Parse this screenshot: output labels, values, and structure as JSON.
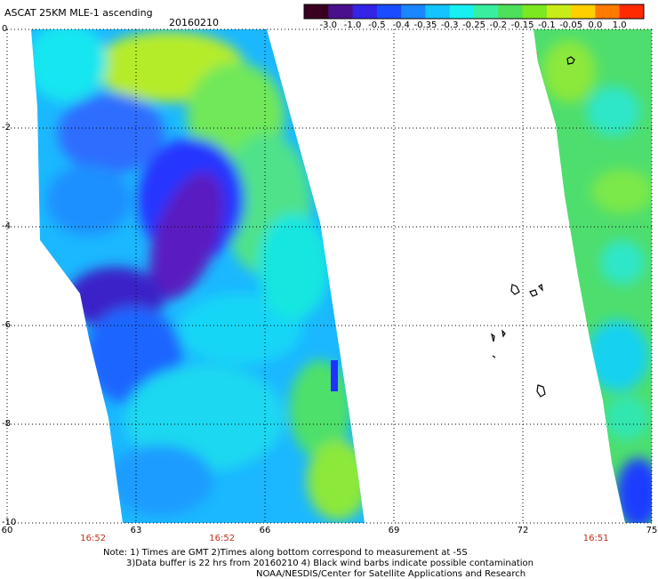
{
  "header": {
    "product_title": "ASCAT 25KM MLE-1 ascending",
    "date": "20160210"
  },
  "colorbar": {
    "labels": [
      "-3.0",
      "-1.0",
      "-0.5",
      "-0.4",
      "-0.35",
      "-0.3",
      "-0.25",
      "-0.2",
      "-0.15",
      "-0.1",
      "-0.05",
      "0.0",
      "1.0"
    ],
    "colors": [
      "#3a0020",
      "#4a0f8c",
      "#3324e6",
      "#1a4cff",
      "#1a86ff",
      "#13c4ff",
      "#16f0f0",
      "#36f0a0",
      "#4de05a",
      "#7ce820",
      "#c8ec18",
      "#ffd000",
      "#ff7a00",
      "#ff2a00"
    ]
  },
  "map": {
    "lon_ticks": [
      {
        "value": 60,
        "label": "60"
      },
      {
        "value": 63,
        "label": "63"
      },
      {
        "value": 66,
        "label": "66"
      },
      {
        "value": 69,
        "label": "69"
      },
      {
        "value": 72,
        "label": "72"
      },
      {
        "value": 75,
        "label": "75"
      }
    ],
    "lat_ticks": [
      {
        "value": 0,
        "label": "0"
      },
      {
        "value": -2,
        "label": "-2"
      },
      {
        "value": -4,
        "label": "-4"
      },
      {
        "value": -6,
        "label": "-6"
      },
      {
        "value": -8,
        "label": "-8"
      },
      {
        "value": -10,
        "label": "-10"
      }
    ],
    "lon_range": [
      60,
      75
    ],
    "lat_range": [
      -10,
      0
    ],
    "grid": true,
    "time_labels": [
      {
        "lon": 62,
        "label": "16:52"
      },
      {
        "lon": 65,
        "label": "16:52"
      },
      {
        "lon": 73.7,
        "label": "16:51"
      }
    ]
  },
  "notes": [
    "Note: 1) Times are GMT 2)Times along bottom correspond to measurement at -5S",
    "3)Data buffer is 22 hrs from 20160210 4) Black wind barbs indicate possible contamination",
    "NOAA/NESDIS/Center for Satellite Applications and Research"
  ]
}
